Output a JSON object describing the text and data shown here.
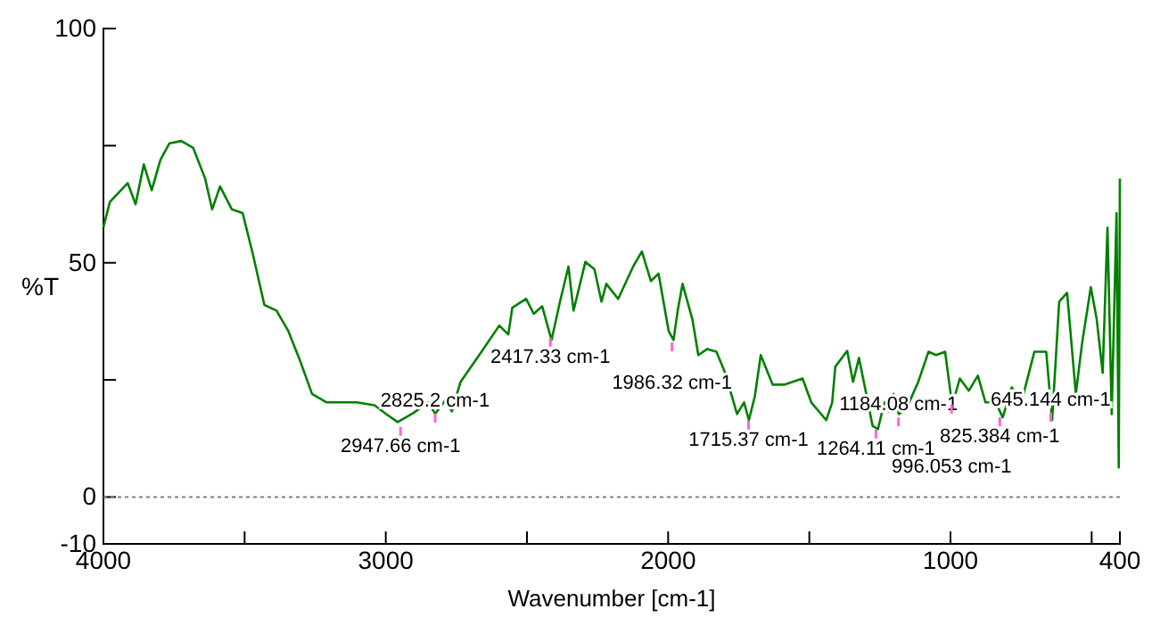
{
  "chart_data": {
    "type": "line",
    "xlabel": "Wavenumber [cm-1]",
    "ylabel": "%T",
    "xlim": [
      4000,
      400
    ],
    "ylim": [
      -10,
      100
    ],
    "xticks": [
      4000,
      {
        "value": 3500,
        "label": null
      },
      3000,
      {
        "value": 2500,
        "label": null
      },
      2000,
      {
        "value": 1500,
        "label": null
      },
      1000,
      {
        "value": 500,
        "label": null
      },
      400
    ],
    "yticks": [
      {
        "value": -10,
        "label": "-10"
      },
      0,
      {
        "value": 25,
        "label": null
      },
      50,
      {
        "value": 75,
        "label": null
      },
      100
    ],
    "grid": false,
    "line_style": "solid",
    "marker": "none",
    "ref_lines": [
      {
        "axis": "y",
        "value": 0,
        "label": null,
        "color": "#808080",
        "line_style": "dotted"
      }
    ],
    "series": [
      {
        "color": "#008000",
        "x": [
          4000,
          3977,
          3914,
          3886,
          3857,
          3829,
          3798,
          3766,
          3724,
          3682,
          3640,
          3615,
          3587,
          3545,
          3507,
          3471,
          3430,
          3387,
          3345,
          3303,
          3261,
          3209,
          3103,
          3040,
          2998,
          2958,
          2903,
          2850,
          2825,
          2787,
          2766,
          2735,
          2661,
          2598,
          2566,
          2552,
          2503,
          2476,
          2446,
          2413,
          2383,
          2353,
          2335,
          2293,
          2261,
          2236,
          2219,
          2177,
          2124,
          2093,
          2061,
          2034,
          1998,
          1981,
          1966,
          1949,
          1914,
          1893,
          1861,
          1829,
          1798,
          1756,
          1731,
          1714,
          1693,
          1672,
          1630,
          1587,
          1524,
          1493,
          1440,
          1419,
          1408,
          1366,
          1345,
          1324,
          1303,
          1276,
          1257,
          1234,
          1219,
          1202,
          1183,
          1156,
          1114,
          1078,
          1051,
          1019,
          994,
          967,
          935,
          903,
          876,
          840,
          815,
          783,
          749,
          703,
          661,
          640,
          615,
          587,
          556,
          534,
          503,
          482,
          461,
          444,
          429,
          412,
          404,
          400
        ],
        "values": [
          57.6,
          63,
          67,
          62.5,
          71,
          65.5,
          72,
          75.5,
          76,
          74.5,
          68,
          61.4,
          66.3,
          61.4,
          60.6,
          51.9,
          41,
          39.8,
          35.4,
          29,
          22,
          20.2,
          20.2,
          19.6,
          17.7,
          16,
          17.9,
          20.2,
          17.8,
          20.8,
          18.3,
          24.6,
          31,
          36.6,
          34.7,
          40.4,
          42.3,
          39.1,
          40.7,
          33.5,
          41.7,
          49.2,
          39.8,
          50.2,
          48.6,
          41.7,
          45.5,
          42.3,
          49.2,
          52.4,
          46.1,
          47.7,
          35.4,
          33.5,
          39.8,
          45.5,
          37.9,
          30.3,
          31.6,
          31,
          26.5,
          17.7,
          20.2,
          16.4,
          21.5,
          30.3,
          24,
          24,
          25.3,
          20.2,
          16.4,
          20.2,
          27.8,
          31.2,
          24.6,
          29.7,
          23.4,
          15.2,
          14.5,
          20.2,
          18.3,
          22,
          17.7,
          18.9,
          24.6,
          31,
          30.3,
          31,
          19.6,
          25.3,
          22.7,
          25.9,
          20.2,
          20.2,
          17,
          23.4,
          20.2,
          31,
          31,
          16.4,
          41.7,
          43.6,
          22,
          32.8,
          44.8,
          37.9,
          26.5,
          57.5,
          17.7,
          60.6,
          6.3,
          68
        ]
      }
    ],
    "annotations": [
      {
        "text": "2947.66 cm-1",
        "x": 2947.66,
        "y": 15
      },
      {
        "text": "2825.2 cm-1",
        "x": 2825.2,
        "y": 17.8
      },
      {
        "text": "2417.33 cm-1",
        "x": 2417.33,
        "y": 34
      },
      {
        "text": "1986.32 cm-1",
        "x": 1986.32,
        "y": 33
      },
      {
        "text": "1715.37 cm-1",
        "x": 1715.37,
        "y": 16.3
      },
      {
        "text": "1264.11 cm-1",
        "x": 1264.11,
        "y": 14.4
      },
      {
        "text": "1184.08 cm-1",
        "x": 1184.08,
        "y": 17
      },
      {
        "text": "996.053 cm-1",
        "x": 996.053,
        "y": 19.7
      },
      {
        "text": "825.384 cm-1",
        "x": 825.384,
        "y": 17
      },
      {
        "text": "645.144 cm-1",
        "x": 645.144,
        "y": 18
      }
    ]
  }
}
